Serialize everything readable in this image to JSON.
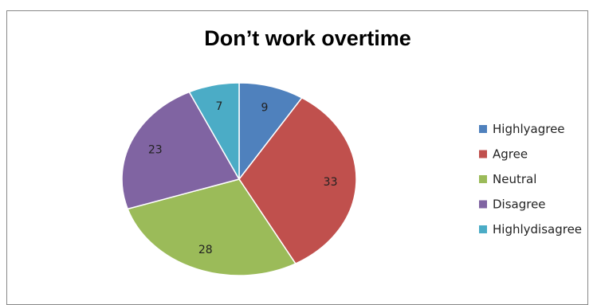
{
  "chart_data": {
    "type": "pie",
    "title": "Don’t work overtime",
    "categories": [
      "Highlyagree",
      "Agree",
      "Neutral",
      "Disagree",
      "Highlydisagree"
    ],
    "values": [
      9,
      33,
      28,
      23,
      7
    ],
    "colors": [
      "#4f81bd",
      "#c0504d",
      "#9bbb59",
      "#8064a2",
      "#4bacc6"
    ],
    "legend": "right",
    "start_angle": "12 o'clock",
    "direction": "clockwise"
  }
}
